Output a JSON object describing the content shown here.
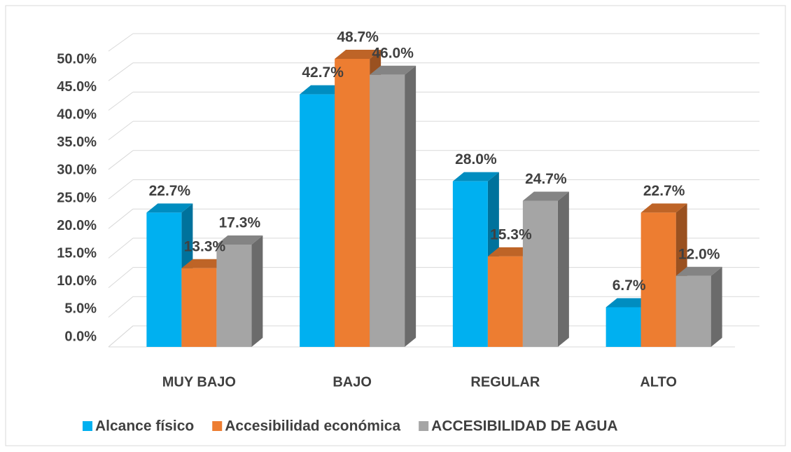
{
  "chart_data": {
    "type": "bar3d",
    "categories": [
      "MUY BAJO",
      "BAJO",
      "REGULAR",
      "ALTO"
    ],
    "series": [
      {
        "name": "Alcance físico",
        "color": "#00b0f0",
        "values": [
          22.7,
          42.7,
          28.0,
          6.7
        ],
        "value_labels": [
          "22.7%",
          "42.7%",
          "28.0%",
          "6.7%"
        ]
      },
      {
        "name": "Accesibilidad económica",
        "color": "#ed7d31",
        "values": [
          13.3,
          48.7,
          15.3,
          22.7
        ],
        "value_labels": [
          "13.3%",
          "48.7%",
          "15.3%",
          "22.7%"
        ]
      },
      {
        "name": "ACCESIBILIDAD DE AGUA",
        "color": "#a5a5a5",
        "values": [
          17.3,
          46.0,
          24.7,
          12.0
        ],
        "value_labels": [
          "17.3%",
          "46.0%",
          "24.7%",
          "12.0%"
        ]
      }
    ],
    "ylim": [
      0,
      50
    ],
    "yticks": [
      {
        "value": 0,
        "label": "0.0%"
      },
      {
        "value": 5,
        "label": "5.0%"
      },
      {
        "value": 10,
        "label": "10.0%"
      },
      {
        "value": 15,
        "label": "15.0%"
      },
      {
        "value": 20,
        "label": "20.0%"
      },
      {
        "value": 25,
        "label": "25.0%"
      },
      {
        "value": 30,
        "label": "30.0%"
      },
      {
        "value": 35,
        "label": "35.0%"
      },
      {
        "value": 40,
        "label": "40.0%"
      },
      {
        "value": 45,
        "label": "45.0%"
      },
      {
        "value": 50,
        "label": "50.0%"
      }
    ],
    "grid": true,
    "legend": "bottom"
  }
}
